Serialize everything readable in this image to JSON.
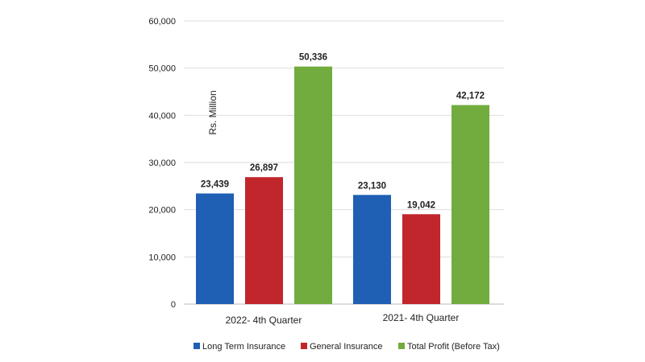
{
  "chart_data": {
    "type": "bar",
    "title": "",
    "xlabel": "",
    "ylabel": "Rs. Million",
    "ylim": [
      0,
      60000
    ],
    "yticks": [
      0,
      10000,
      20000,
      30000,
      40000,
      50000,
      60000
    ],
    "ytick_labels": [
      "0",
      "10,000",
      "20,000",
      "30,000",
      "40,000",
      "50,000",
      "60,000"
    ],
    "grid": true,
    "legend_position": "bottom",
    "categories": [
      "2022- 4th Quarter",
      "2021- 4th  Quarter"
    ],
    "series": [
      {
        "name": "Long Term Insurance",
        "color": "#1f5fb4",
        "values": [
          23439,
          23130
        ],
        "labels": [
          "23,439",
          "23,130"
        ]
      },
      {
        "name": "General Insurance",
        "color": "#c0262c",
        "values": [
          26897,
          19042
        ],
        "labels": [
          "26,897",
          "19,042"
        ]
      },
      {
        "name": "Total Profit (Before Tax)",
        "color": "#72ac3f",
        "values": [
          50336,
          42172
        ],
        "labels": [
          "50,336",
          "42,172"
        ]
      }
    ]
  }
}
